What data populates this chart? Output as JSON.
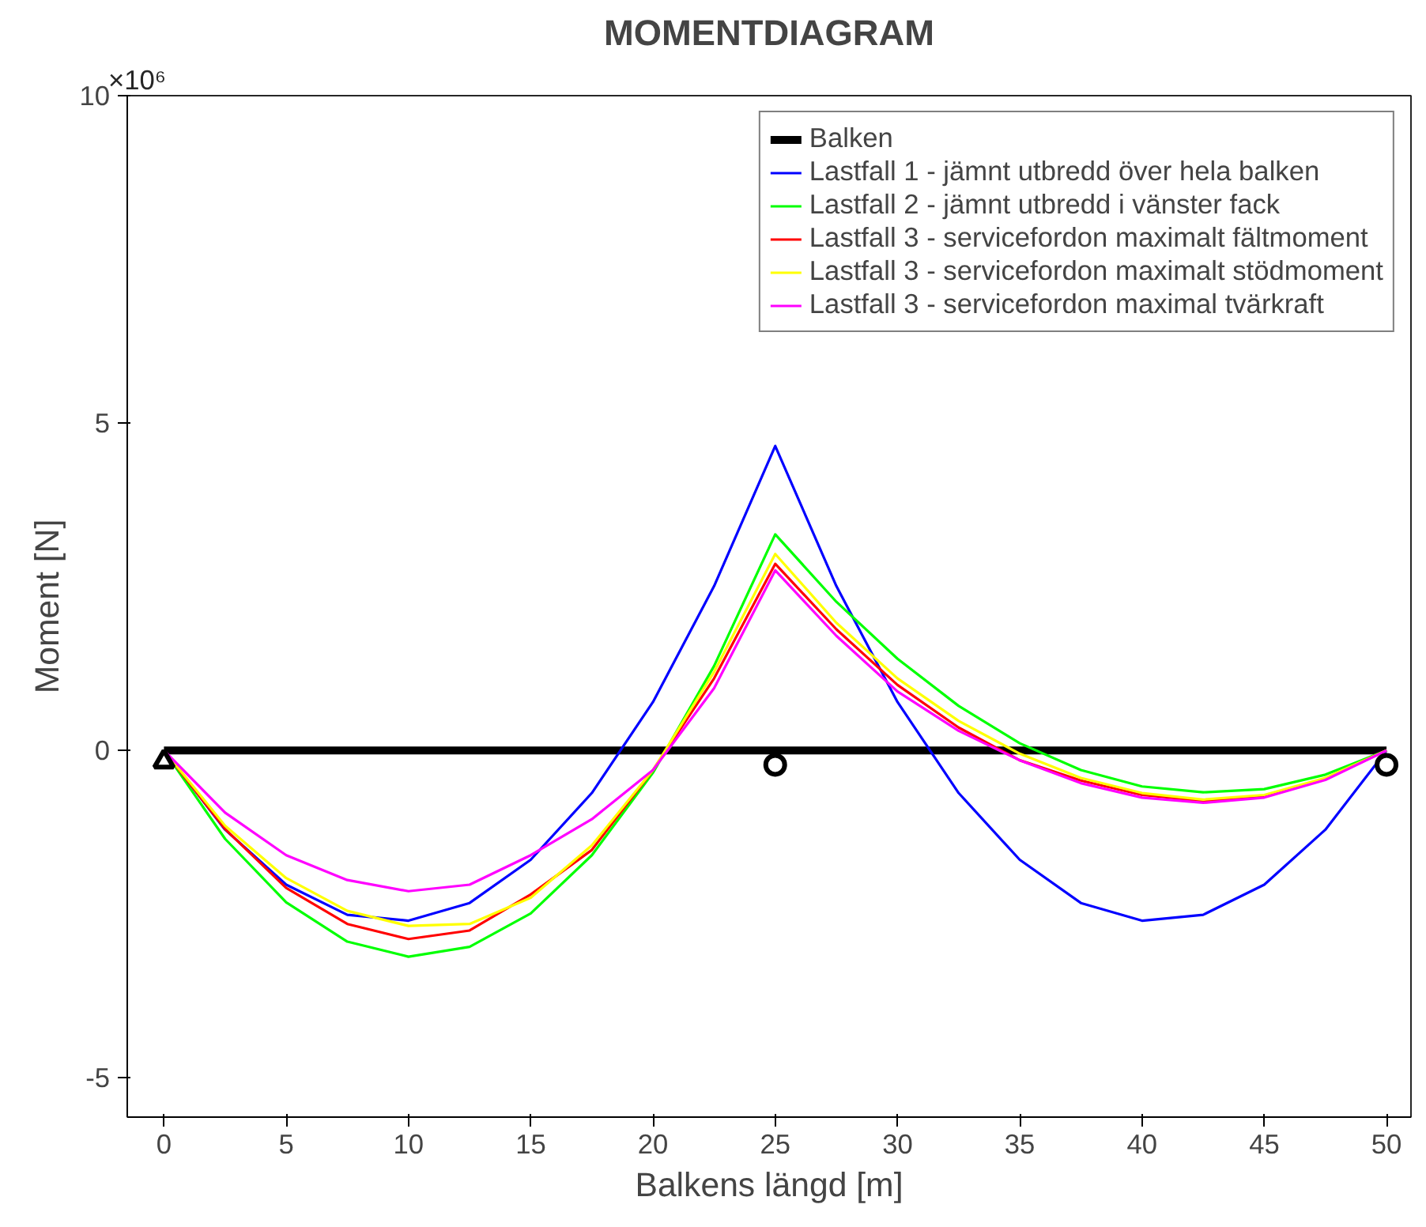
{
  "chart_data": {
    "type": "line",
    "title": "MOMENTDIAGRAM",
    "xlabel": "Balkens längd [m]",
    "ylabel": "Moment [N]",
    "annotations": [
      "×10⁶"
    ],
    "xlim": [
      -1.5,
      51
    ],
    "ylim": [
      -5.6,
      10
    ],
    "xticks": [
      0,
      5,
      10,
      15,
      20,
      25,
      30,
      35,
      40,
      45,
      50
    ],
    "yticks": [
      -5,
      0,
      5,
      10
    ],
    "grid": false,
    "legend": "top right",
    "marker": "none",
    "line_style": "solid",
    "x": [
      0,
      2.5,
      5,
      7.5,
      10,
      12.5,
      15,
      17.5,
      20,
      22.5,
      25,
      27.5,
      30,
      32.5,
      35,
      37.5,
      40,
      42.5,
      45,
      47.5,
      50
    ],
    "series": [
      {
        "name": "Balken",
        "color": "#000000",
        "x": [
          0,
          50
        ],
        "values": [
          0,
          0
        ]
      },
      {
        "name": "Lastfall 1 - jämnt utbredd över hela balken",
        "color": "#0000ff",
        "values": [
          0,
          -1.21,
          -2.05,
          -2.51,
          -2.6,
          -2.33,
          -1.67,
          -0.65,
          0.74,
          2.51,
          4.65,
          2.51,
          0.74,
          -0.65,
          -1.67,
          -2.33,
          -2.6,
          -2.51,
          -2.05,
          -1.21,
          0
        ]
      },
      {
        "name": "Lastfall 2 - jämnt utbredd i vänster fack",
        "color": "#00ff00",
        "values": [
          0,
          -1.35,
          -2.32,
          -2.92,
          -3.15,
          -3.0,
          -2.49,
          -1.6,
          -0.34,
          1.29,
          3.3,
          2.27,
          1.4,
          0.68,
          0.11,
          -0.3,
          -0.55,
          -0.64,
          -0.59,
          -0.37,
          0
        ]
      },
      {
        "name": "Lastfall 3 - servicefordon maximalt fältmoment",
        "color": "#ff0000",
        "values": [
          0,
          -1.2,
          -2.1,
          -2.65,
          -2.88,
          -2.75,
          -2.2,
          -1.52,
          -0.3,
          1.1,
          2.85,
          1.85,
          1.0,
          0.35,
          -0.15,
          -0.46,
          -0.68,
          -0.77,
          -0.7,
          -0.43,
          0
        ]
      },
      {
        "name": "Lastfall 3 - servicefordon maximalt stödmoment",
        "color": "#ffff00",
        "values": [
          0,
          -1.15,
          -1.95,
          -2.45,
          -2.68,
          -2.65,
          -2.25,
          -1.45,
          -0.3,
          1.2,
          3.0,
          1.95,
          1.1,
          0.45,
          -0.05,
          -0.42,
          -0.65,
          -0.75,
          -0.68,
          -0.42,
          0
        ]
      },
      {
        "name": "Lastfall 3 - servicefordon maximal tvärkraft",
        "color": "#ff00ff",
        "values": [
          0,
          -0.95,
          -1.6,
          -1.98,
          -2.15,
          -2.05,
          -1.6,
          -1.05,
          -0.3,
          0.95,
          2.75,
          1.75,
          0.9,
          0.3,
          -0.15,
          -0.5,
          -0.72,
          -0.8,
          -0.72,
          -0.45,
          0
        ]
      },
      {
        "type": "scatter",
        "marker": "triangle",
        "color": "#000000",
        "x": [
          0
        ],
        "values": [
          -0.17
        ]
      },
      {
        "type": "scatter",
        "marker": "circle",
        "color": "#000000",
        "x": [
          25,
          50
        ],
        "values": [
          -0.22,
          -0.22
        ]
      }
    ]
  }
}
